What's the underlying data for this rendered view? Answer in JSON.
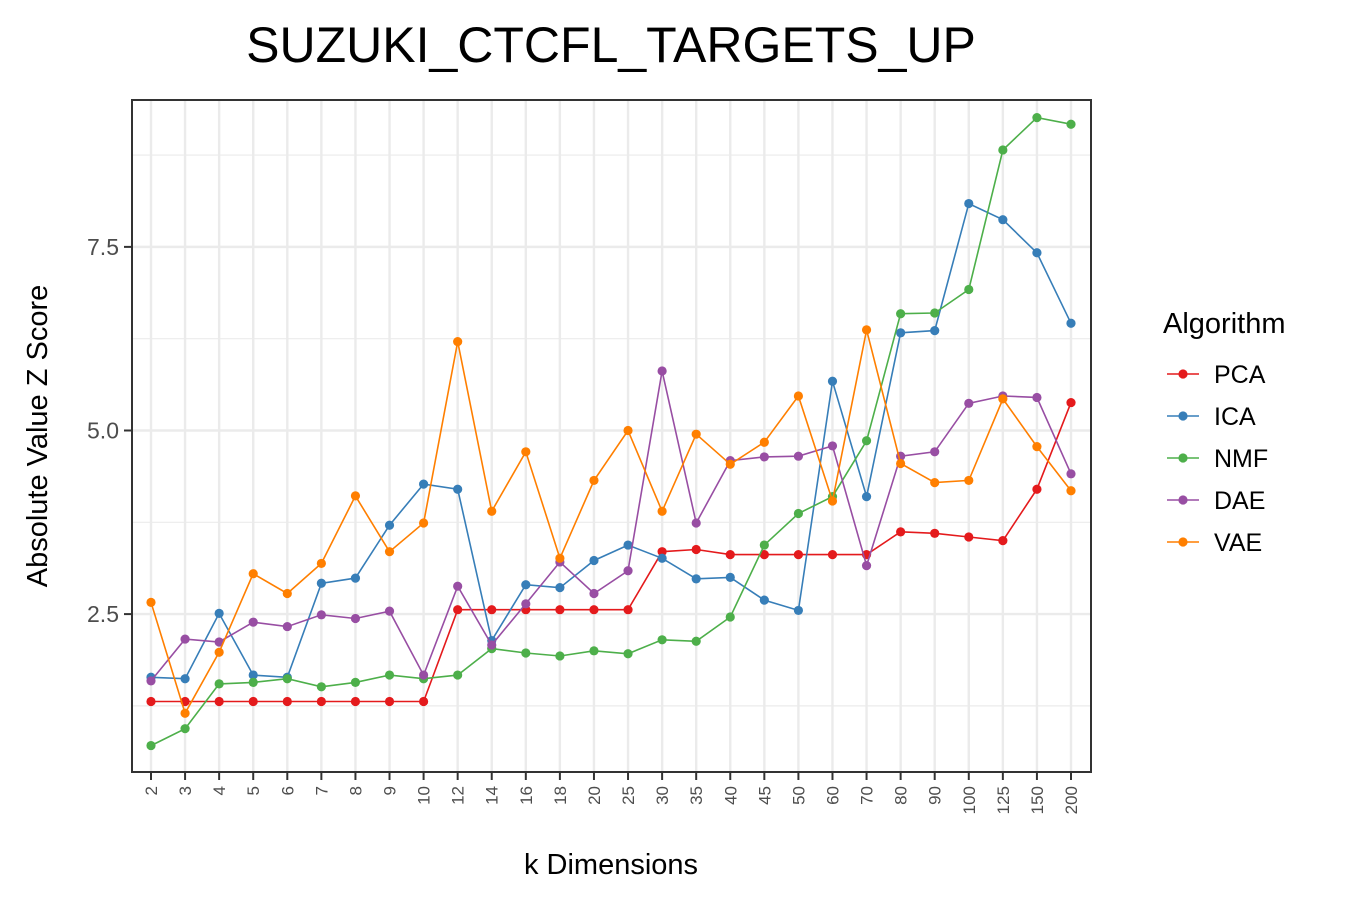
{
  "chart_data": {
    "type": "line",
    "title": "SUZUKI_CTCFL_TARGETS_UP",
    "xlabel": "k Dimensions",
    "ylabel": "Absolute Value Z Score",
    "categories": [
      "2",
      "3",
      "4",
      "5",
      "6",
      "7",
      "8",
      "9",
      "10",
      "12",
      "14",
      "16",
      "18",
      "20",
      "25",
      "30",
      "35",
      "40",
      "45",
      "50",
      "60",
      "70",
      "80",
      "90",
      "100",
      "125",
      "150",
      "200"
    ],
    "ylim": [
      0.35,
      9.5
    ],
    "yticks": [
      2.5,
      5.0,
      7.5
    ],
    "ytick_labels": [
      "2.5",
      "5.0",
      "7.5"
    ],
    "grid": true,
    "legend": {
      "title": "Algorithm",
      "position": "right"
    },
    "series": [
      {
        "name": "PCA",
        "color": "#e41a1c",
        "values": [
          1.31,
          1.31,
          1.31,
          1.31,
          1.31,
          1.31,
          1.31,
          1.31,
          1.31,
          2.56,
          2.56,
          2.56,
          2.56,
          2.56,
          2.56,
          3.35,
          3.38,
          3.31,
          3.31,
          3.31,
          3.31,
          3.31,
          3.62,
          3.6,
          3.55,
          3.5,
          4.2,
          5.38
        ]
      },
      {
        "name": "ICA",
        "color": "#377eb8",
        "values": [
          1.64,
          1.62,
          2.51,
          1.67,
          1.64,
          2.92,
          2.99,
          3.71,
          4.27,
          4.2,
          2.14,
          2.9,
          2.86,
          3.23,
          3.44,
          3.26,
          2.98,
          3.0,
          2.69,
          2.55,
          5.67,
          4.1,
          6.33,
          6.36,
          8.09,
          7.87,
          7.42,
          6.46
        ]
      },
      {
        "name": "NMF",
        "color": "#4daf4a",
        "values": [
          0.71,
          0.94,
          1.55,
          1.57,
          1.62,
          1.51,
          1.57,
          1.67,
          1.62,
          1.67,
          2.03,
          1.97,
          1.93,
          2.0,
          1.96,
          2.15,
          2.13,
          2.46,
          3.44,
          3.87,
          4.1,
          4.86,
          6.59,
          6.6,
          6.92,
          8.82,
          9.26,
          9.17
        ]
      },
      {
        "name": "DAE",
        "color": "#984ea3",
        "values": [
          1.59,
          2.16,
          2.12,
          2.39,
          2.33,
          2.49,
          2.44,
          2.54,
          1.67,
          2.88,
          2.08,
          2.64,
          3.21,
          2.78,
          3.09,
          5.81,
          3.74,
          4.59,
          4.64,
          4.65,
          4.79,
          3.16,
          4.65,
          4.71,
          5.37,
          5.47,
          5.45,
          4.41
        ]
      },
      {
        "name": "VAE",
        "color": "#ff7f00",
        "values": [
          2.66,
          1.15,
          1.98,
          3.05,
          2.78,
          3.19,
          4.11,
          3.35,
          3.74,
          6.21,
          3.9,
          4.71,
          3.26,
          4.32,
          5.0,
          3.9,
          4.95,
          4.54,
          4.84,
          5.47,
          4.04,
          6.37,
          4.55,
          4.29,
          4.32,
          5.43,
          4.78,
          4.18
        ]
      }
    ]
  }
}
